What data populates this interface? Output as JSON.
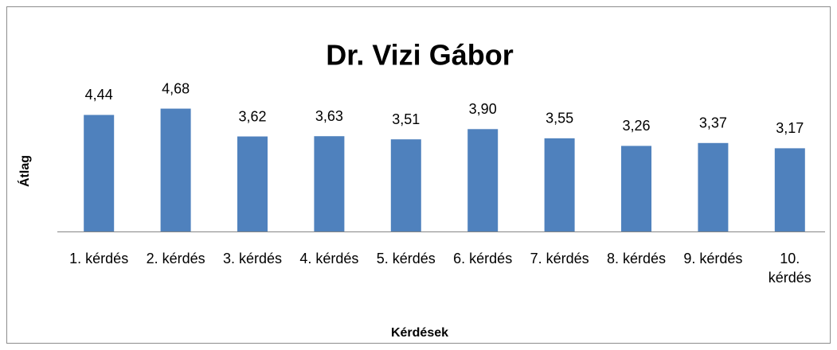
{
  "chart_data": {
    "type": "bar",
    "title": "Dr. Vizi Gábor",
    "x_label": "Kérdések",
    "y_label": "Átlag",
    "categories": [
      "1. kérdés",
      "2. kérdés",
      "3. kérdés",
      "4. kérdés",
      "5. kérdés",
      "6. kérdés",
      "7. kérdés",
      "8. kérdés",
      "9. kérdés",
      "10. kérdés"
    ],
    "values": [
      4.44,
      4.68,
      3.62,
      3.63,
      3.51,
      3.9,
      3.55,
      3.26,
      3.37,
      3.17
    ],
    "value_labels": [
      "4,44",
      "4,68",
      "3,62",
      "3,63",
      "3,51",
      "3,90",
      "3,55",
      "3,26",
      "3,37",
      "3,17"
    ],
    "color": "#4f81bd",
    "ylim": [
      0,
      5
    ],
    "grid": false
  }
}
